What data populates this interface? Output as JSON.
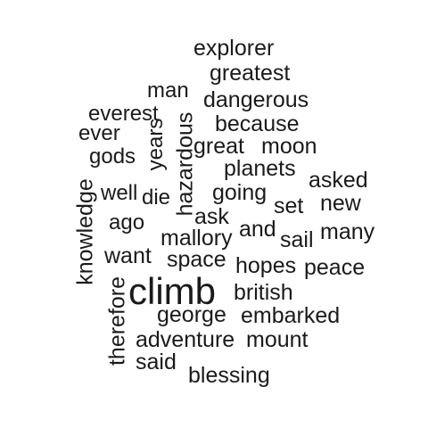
{
  "words": {
    "explorer": "explorer",
    "greatest": "greatest",
    "man": "man",
    "dangerous": "dangerous",
    "everest": "everest",
    "because": "because",
    "ever": "ever",
    "years": "years",
    "hazardous": "hazardous",
    "great": "great",
    "moon": "moon",
    "gods": "gods",
    "planets": "planets",
    "asked": "asked",
    "well": "well",
    "die": "die",
    "going": "going",
    "set": "set",
    "new": "new",
    "knowledge": "knowledge",
    "ago": "ago",
    "ask": "ask",
    "and": "and",
    "mallory": "mallory",
    "sail": "sail",
    "many": "many",
    "want": "want",
    "space": "space",
    "hopes": "hopes",
    "peace": "peace",
    "therefore": "therefore",
    "climb": "climb",
    "british": "british",
    "george": "george",
    "embarked": "embarked",
    "adventure": "adventure",
    "mount": "mount",
    "said": "said",
    "blessing": "blessing"
  }
}
